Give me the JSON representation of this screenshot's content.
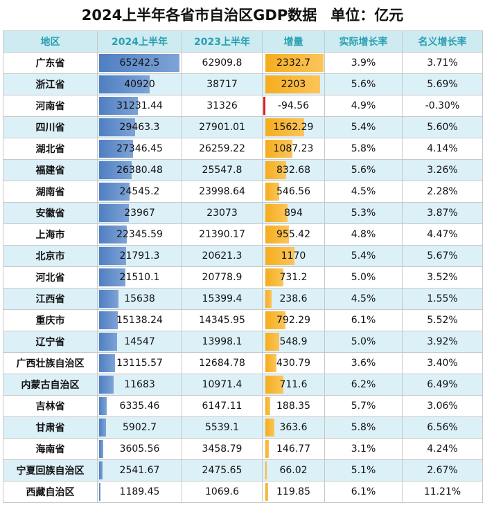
{
  "header": {
    "title": "2024上半年各省市自治区GDP数据",
    "unit": "单位：亿元"
  },
  "table": {
    "columns": [
      "地区",
      "2024上半年",
      "2023上半年",
      "增量",
      "实际增长率",
      "名义增长率"
    ],
    "rows": [
      [
        "广东省",
        "65242.5",
        "62909.8",
        "2332.7",
        "3.9%",
        "3.71%"
      ],
      [
        "浙江省",
        "40920",
        "38717",
        "2203",
        "5.6%",
        "5.69%"
      ],
      [
        "河南省",
        "31231.44",
        "31326",
        "-94.56",
        "4.9%",
        "-0.30%"
      ],
      [
        "四川省",
        "29463.3",
        "27901.01",
        "1562.29",
        "5.4%",
        "5.60%"
      ],
      [
        "湖北省",
        "27346.45",
        "26259.22",
        "1087.23",
        "5.8%",
        "4.14%"
      ],
      [
        "福建省",
        "26380.48",
        "25547.8",
        "832.68",
        "5.6%",
        "3.26%"
      ],
      [
        "湖南省",
        "24545.2",
        "23998.64",
        "546.56",
        "4.5%",
        "2.28%"
      ],
      [
        "安徽省",
        "23967",
        "23073",
        "894",
        "5.3%",
        "3.87%"
      ],
      [
        "上海市",
        "22345.59",
        "21390.17",
        "955.42",
        "4.8%",
        "4.47%"
      ],
      [
        "北京市",
        "21791.3",
        "20621.3",
        "1170",
        "5.4%",
        "5.67%"
      ],
      [
        "河北省",
        "21510.1",
        "20778.9",
        "731.2",
        "5.0%",
        "3.52%"
      ],
      [
        "江西省",
        "15638",
        "15399.4",
        "238.6",
        "4.5%",
        "1.55%"
      ],
      [
        "重庆市",
        "15138.24",
        "14345.95",
        "792.29",
        "6.1%",
        "5.52%"
      ],
      [
        "辽宁省",
        "14547",
        "13998.1",
        "548.9",
        "5.0%",
        "3.92%"
      ],
      [
        "广西壮族自治区",
        "13115.57",
        "12684.78",
        "430.79",
        "3.6%",
        "3.40%"
      ],
      [
        "内蒙古自治区",
        "11683",
        "10971.4",
        "711.6",
        "6.2%",
        "6.49%"
      ],
      [
        "吉林省",
        "6335.46",
        "6147.11",
        "188.35",
        "5.7%",
        "3.06%"
      ],
      [
        "甘肃省",
        "5902.7",
        "5539.1",
        "363.6",
        "5.8%",
        "6.56%"
      ],
      [
        "海南省",
        "3605.56",
        "3458.79",
        "146.77",
        "3.1%",
        "4.24%"
      ],
      [
        "宁夏回族自治区",
        "2541.67",
        "2475.65",
        "66.02",
        "5.1%",
        "2.67%"
      ],
      [
        "西藏自治区",
        "1189.45",
        "1069.6",
        "119.85",
        "6.1%",
        "11.21%"
      ]
    ]
  }
}
